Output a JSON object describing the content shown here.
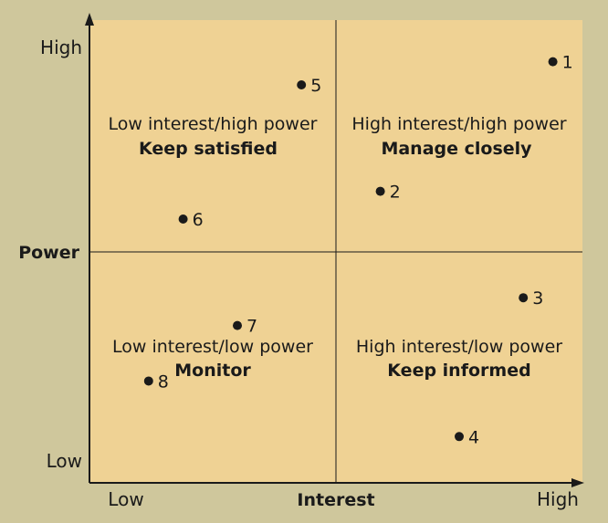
{
  "colors": {
    "background": "#cfc79c",
    "plot_fill": "#efd294",
    "ink": "#1a1a1a"
  },
  "axes": {
    "y_title": "Power",
    "x_title": "Interest",
    "y_high": "High",
    "y_low": "Low",
    "x_low": "Low",
    "x_high": "High"
  },
  "quadrants": {
    "top_left": {
      "title": "Low interest/high power",
      "action": "Keep satisfied"
    },
    "top_right": {
      "title": "High interest/high power",
      "action": "Manage closely"
    },
    "bottom_left": {
      "title": "Low interest/low power",
      "action": "Monitor"
    },
    "bottom_right": {
      "title": "High interest/low power",
      "action": "Keep informed"
    }
  },
  "chart_data": {
    "type": "scatter",
    "xlabel": "Interest",
    "ylabel": "Power",
    "xlim": [
      0,
      1
    ],
    "ylim": [
      0,
      1
    ],
    "x_scale_labels": [
      "Low",
      "High"
    ],
    "y_scale_labels": [
      "Low",
      "High"
    ],
    "points": [
      {
        "label": "1",
        "x": 0.94,
        "y": 0.91
      },
      {
        "label": "2",
        "x": 0.59,
        "y": 0.63
      },
      {
        "label": "3",
        "x": 0.88,
        "y": 0.4
      },
      {
        "label": "4",
        "x": 0.75,
        "y": 0.1
      },
      {
        "label": "5",
        "x": 0.43,
        "y": 0.86
      },
      {
        "label": "6",
        "x": 0.19,
        "y": 0.57
      },
      {
        "label": "7",
        "x": 0.3,
        "y": 0.34
      },
      {
        "label": "8",
        "x": 0.12,
        "y": 0.22
      }
    ]
  }
}
